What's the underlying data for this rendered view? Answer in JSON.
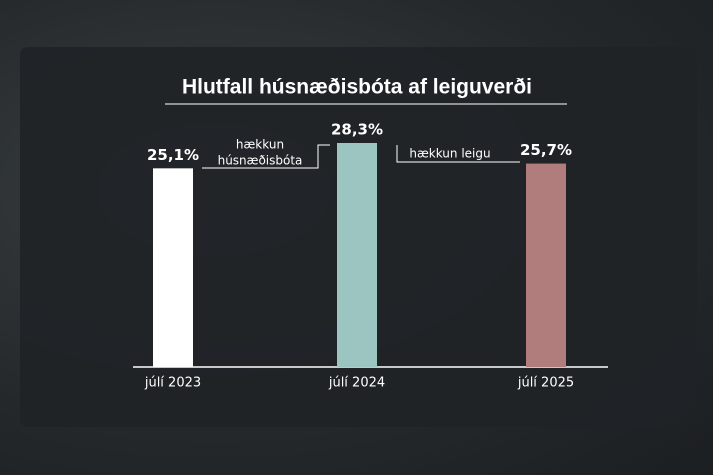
{
  "chart_data": {
    "type": "bar",
    "title": "Hlutfall húsnæðisbóta af leiguverði",
    "categories": [
      "júlí 2023",
      "júlí 2024",
      "júlí 2025"
    ],
    "values": [
      25.1,
      28.3,
      25.7
    ],
    "value_labels": [
      "25,1%",
      "28,3%",
      "25,7%"
    ],
    "colors": [
      "#ffffff",
      "#9cc5c1",
      "#b07c7c"
    ],
    "annotations": [
      [
        "hækkun",
        "húsnæðisbóta"
      ],
      [
        "hækkun leigu"
      ]
    ]
  }
}
